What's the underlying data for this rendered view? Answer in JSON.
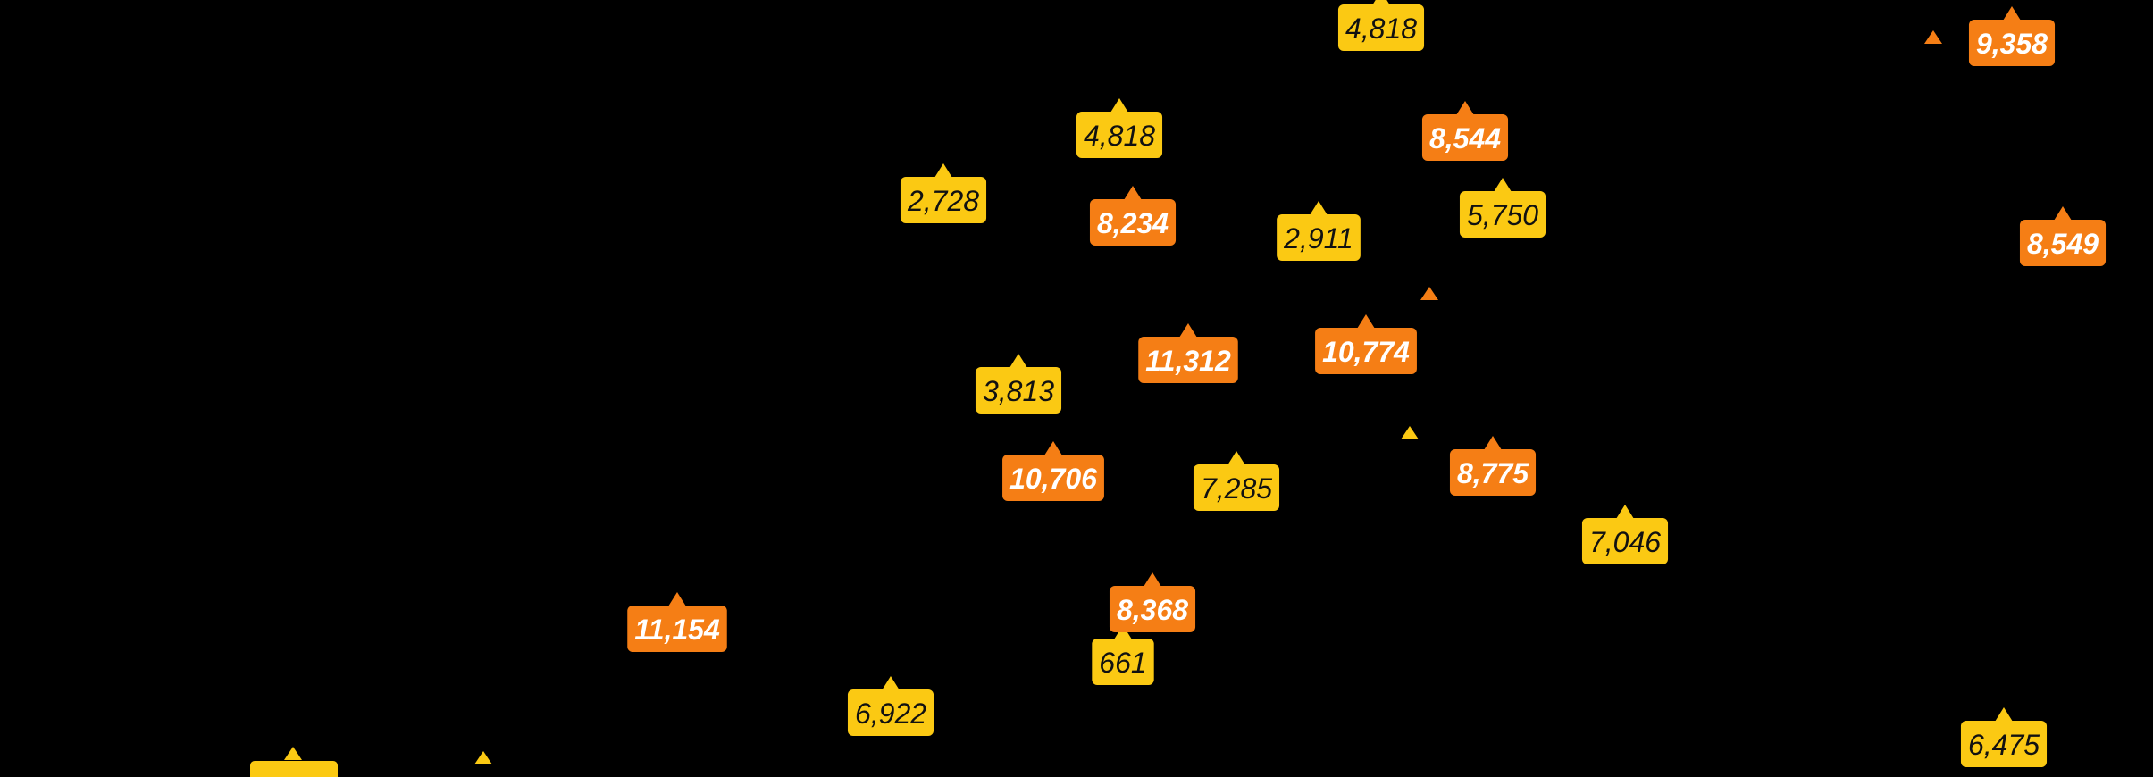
{
  "markers": [
    {
      "label": "4,818",
      "color": "#fbc913",
      "text_color": "#111111"
    },
    {
      "label": "4,818",
      "color": "#fbc913",
      "text_color": "#111111"
    },
    {
      "label": "2,728",
      "color": "#fbc913",
      "text_color": "#111111"
    },
    {
      "label": "2,911",
      "color": "#fbc913",
      "text_color": "#111111"
    },
    {
      "label": "5,750",
      "color": "#fbc913",
      "text_color": "#111111"
    },
    {
      "label": "3,813",
      "color": "#fbc913",
      "text_color": "#111111"
    },
    {
      "label": "7,285",
      "color": "#fbc913",
      "text_color": "#111111"
    },
    {
      "label": "7,046",
      "color": "#fbc913",
      "text_color": "#111111"
    },
    {
      "label": "661",
      "color": "#fbc913",
      "text_color": "#111111"
    },
    {
      "label": "6,922",
      "color": "#fbc913",
      "text_color": "#111111"
    },
    {
      "label": "6,475",
      "color": "#fbc913",
      "text_color": "#111111"
    },
    {
      "label": "9,358",
      "color": "#f57e15",
      "text_color": "#ffffff"
    },
    {
      "label": "8,544",
      "color": "#f57e15",
      "text_color": "#ffffff"
    },
    {
      "label": "8,234",
      "color": "#f57e15",
      "text_color": "#ffffff"
    },
    {
      "label": "8,549",
      "color": "#f57e15",
      "text_color": "#ffffff"
    },
    {
      "label": "11,312",
      "color": "#f57e15",
      "text_color": "#ffffff"
    },
    {
      "label": "10,774",
      "color": "#f57e15",
      "text_color": "#ffffff"
    },
    {
      "label": "10,706",
      "color": "#f57e15",
      "text_color": "#ffffff"
    },
    {
      "label": "8,775",
      "color": "#f57e15",
      "text_color": "#ffffff"
    },
    {
      "label": "11,154",
      "color": "#f57e15",
      "text_color": "#ffffff"
    },
    {
      "label": "8,368",
      "color": "#f57e15",
      "text_color": "#ffffff"
    }
  ]
}
